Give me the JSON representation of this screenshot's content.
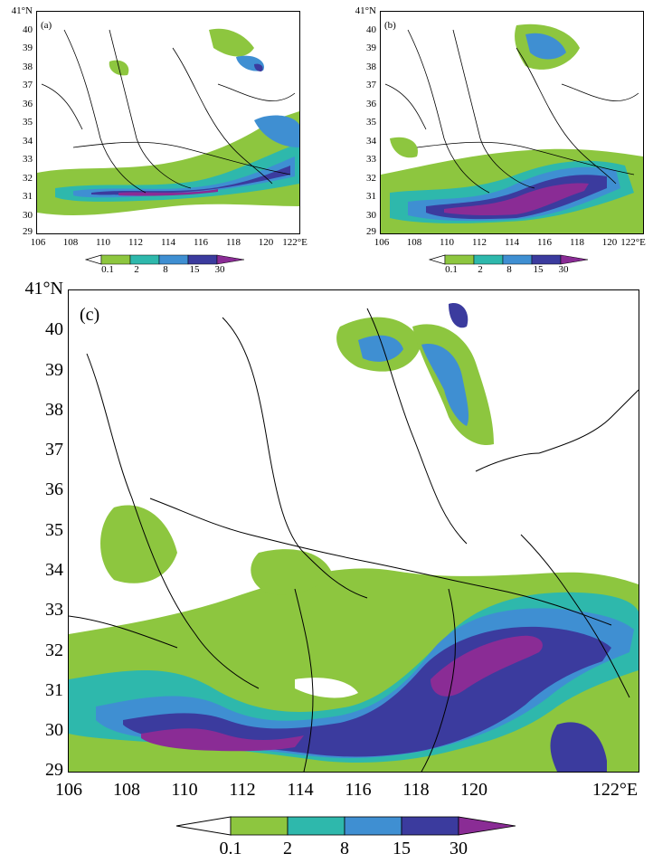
{
  "panels": [
    {
      "id": "a",
      "label": "(a)",
      "yticks": [
        "41°N",
        "40",
        "39",
        "38",
        "37",
        "36",
        "35",
        "34",
        "33",
        "32",
        "31",
        "30",
        "29"
      ],
      "xticks": [
        "106",
        "108",
        "110",
        "112",
        "114",
        "116",
        "118",
        "120",
        "122°E"
      ],
      "colorbar": [
        "0.1",
        "2",
        "8",
        "15",
        "30"
      ]
    },
    {
      "id": "b",
      "label": "(b)",
      "yticks": [
        "41°N",
        "40",
        "39",
        "38",
        "37",
        "36",
        "35",
        "34",
        "33",
        "32",
        "31",
        "30",
        "29"
      ],
      "xticks": [
        "106",
        "108",
        "110",
        "112",
        "114",
        "116",
        "118",
        "120",
        "122°E"
      ],
      "colorbar": [
        "0.1",
        "2",
        "8",
        "15",
        "30"
      ]
    },
    {
      "id": "c",
      "label": "(c)",
      "yticks": [
        "41°N",
        "40",
        "39",
        "38",
        "37",
        "36",
        "35",
        "34",
        "33",
        "32",
        "31",
        "30",
        "29"
      ],
      "xticks": [
        "106",
        "108",
        "110",
        "112",
        "114",
        "116",
        "118",
        "120",
        "122°E"
      ],
      "colorbar": [
        "0.1",
        "2",
        "8",
        "15",
        "30"
      ]
    }
  ],
  "colors": {
    "level1": "#8dc63f",
    "level2": "#2eb8ac",
    "level3": "#3f8fd2",
    "level4": "#3b3b9e",
    "level5": "#8a2c95"
  }
}
